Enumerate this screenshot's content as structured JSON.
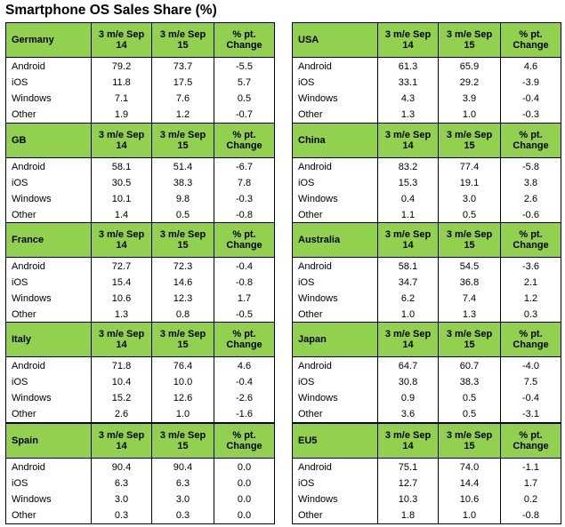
{
  "title": "Smartphone OS Sales Share (%)",
  "columns": [
    "3 m/e Sep 14",
    "3 m/e Sep 15",
    "% pt. Change"
  ],
  "column_lines": [
    [
      "3 m/e Sep",
      "14"
    ],
    [
      "3 m/e Sep",
      "15"
    ],
    [
      "% pt.",
      "Change"
    ]
  ],
  "header_color": "#92d050",
  "panels": [
    {
      "country": "Germany",
      "rows": [
        {
          "os": "Android",
          "v14": "79.2",
          "v15": "73.7",
          "chg": "-5.5"
        },
        {
          "os": "iOS",
          "v14": "11.8",
          "v15": "17.5",
          "chg": "5.7"
        },
        {
          "os": "Windows",
          "v14": "7.1",
          "v15": "7.6",
          "chg": "0.5"
        },
        {
          "os": "Other",
          "v14": "1.9",
          "v15": "1.2",
          "chg": "-0.7"
        }
      ]
    },
    {
      "country": "USA",
      "rows": [
        {
          "os": "Android",
          "v14": "61.3",
          "v15": "65.9",
          "chg": "4.6"
        },
        {
          "os": "iOS",
          "v14": "33.1",
          "v15": "29.2",
          "chg": "-3.9"
        },
        {
          "os": "Windows",
          "v14": "4.3",
          "v15": "3.9",
          "chg": "-0.4"
        },
        {
          "os": "Other",
          "v14": "1.3",
          "v15": "1.0",
          "chg": "-0.3"
        }
      ]
    },
    {
      "country": "GB",
      "rows": [
        {
          "os": "Android",
          "v14": "58.1",
          "v15": "51.4",
          "chg": "-6.7"
        },
        {
          "os": "iOS",
          "v14": "30.5",
          "v15": "38.3",
          "chg": "7.8"
        },
        {
          "os": "Windows",
          "v14": "10.1",
          "v15": "9.8",
          "chg": "-0.3"
        },
        {
          "os": "Other",
          "v14": "1.4",
          "v15": "0.5",
          "chg": "-0.8"
        }
      ]
    },
    {
      "country": "China",
      "rows": [
        {
          "os": "Android",
          "v14": "83.2",
          "v15": "77.4",
          "chg": "-5.8"
        },
        {
          "os": "iOS",
          "v14": "15.3",
          "v15": "19.1",
          "chg": "3.8"
        },
        {
          "os": "Windows",
          "v14": "0.4",
          "v15": "3.0",
          "chg": "2.6"
        },
        {
          "os": "Other",
          "v14": "1.1",
          "v15": "0.5",
          "chg": "-0.6"
        }
      ]
    },
    {
      "country": "France",
      "rows": [
        {
          "os": "Android",
          "v14": "72.7",
          "v15": "72.3",
          "chg": "-0.4"
        },
        {
          "os": "iOS",
          "v14": "15.4",
          "v15": "14.6",
          "chg": "-0.8"
        },
        {
          "os": "Windows",
          "v14": "10.6",
          "v15": "12.3",
          "chg": "1.7"
        },
        {
          "os": "Other",
          "v14": "1.3",
          "v15": "0.8",
          "chg": "-0.5"
        }
      ]
    },
    {
      "country": "Australia",
      "rows": [
        {
          "os": "Android",
          "v14": "58.1",
          "v15": "54.5",
          "chg": "-3.6"
        },
        {
          "os": "iOS",
          "v14": "34.7",
          "v15": "36.8",
          "chg": "2.1"
        },
        {
          "os": "Windows",
          "v14": "6.2",
          "v15": "7.4",
          "chg": "1.2"
        },
        {
          "os": "Other",
          "v14": "1.0",
          "v15": "1.3",
          "chg": "0.3"
        }
      ]
    },
    {
      "country": "Italy",
      "rows": [
        {
          "os": "Android",
          "v14": "71.8",
          "v15": "76.4",
          "chg": "4.6"
        },
        {
          "os": "iOS",
          "v14": "10.4",
          "v15": "10.0",
          "chg": "-0.4"
        },
        {
          "os": "Windows",
          "v14": "15.2",
          "v15": "12.6",
          "chg": "-2.6"
        },
        {
          "os": "Other",
          "v14": "2.6",
          "v15": "1.0",
          "chg": "-1.6"
        }
      ]
    },
    {
      "country": "Japan",
      "rows": [
        {
          "os": "Android",
          "v14": "64.7",
          "v15": "60.7",
          "chg": "-4.0"
        },
        {
          "os": "iOS",
          "v14": "30.8",
          "v15": "38.3",
          "chg": "7.5"
        },
        {
          "os": "Windows",
          "v14": "0.9",
          "v15": "0.5",
          "chg": "-0.4"
        },
        {
          "os": "Other",
          "v14": "3.6",
          "v15": "0.5",
          "chg": "-3.1"
        }
      ]
    },
    {
      "country": "Spain",
      "rows": [
        {
          "os": "Android",
          "v14": "90.4",
          "v15": "90.4",
          "chg": "0.0"
        },
        {
          "os": "iOS",
          "v14": "6.3",
          "v15": "6.3",
          "chg": "0.0"
        },
        {
          "os": "Windows",
          "v14": "3.0",
          "v15": "3.0",
          "chg": "0.0"
        },
        {
          "os": "Other",
          "v14": "0.3",
          "v15": "0.3",
          "chg": "0.0"
        }
      ]
    },
    {
      "country": "EU5",
      "rows": [
        {
          "os": "Android",
          "v14": "75.1",
          "v15": "74.0",
          "chg": "-1.1"
        },
        {
          "os": "iOS",
          "v14": "12.7",
          "v15": "14.4",
          "chg": "1.7"
        },
        {
          "os": "Windows",
          "v14": "10.3",
          "v15": "10.6",
          "chg": "0.2"
        },
        {
          "os": "Other",
          "v14": "1.8",
          "v15": "1.0",
          "chg": "-0.8"
        }
      ]
    }
  ]
}
